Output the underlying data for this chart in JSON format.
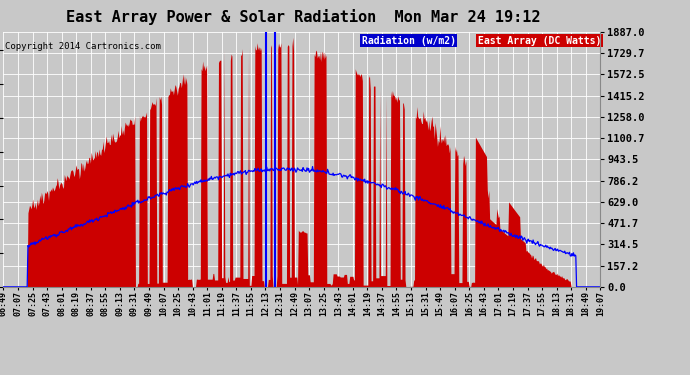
{
  "title": "East Array Power & Solar Radiation  Mon Mar 24 19:12",
  "copyright": "Copyright 2014 Cartronics.com",
  "legend_radiation": "Radiation (w/m2)",
  "legend_east": "East Array (DC Watts)",
  "y_max": 1887.0,
  "y_min": 0.0,
  "y_ticks": [
    0.0,
    157.2,
    314.5,
    471.7,
    629.0,
    786.2,
    943.5,
    1100.7,
    1258.0,
    1415.2,
    1572.5,
    1729.7,
    1887.0
  ],
  "bg_color": "#c8c8c8",
  "radiation_color": "#0000ff",
  "east_fill_color": "#cc0000",
  "grid_color": "#ffffff",
  "x_labels": [
    "06:49",
    "07:07",
    "07:25",
    "07:43",
    "08:01",
    "08:19",
    "08:37",
    "08:55",
    "09:13",
    "09:31",
    "09:49",
    "10:07",
    "10:25",
    "10:43",
    "11:01",
    "11:19",
    "11:37",
    "11:55",
    "12:13",
    "12:31",
    "12:49",
    "13:07",
    "13:25",
    "13:43",
    "14:01",
    "14:19",
    "14:37",
    "14:55",
    "15:13",
    "15:31",
    "15:49",
    "16:07",
    "16:25",
    "16:43",
    "17:01",
    "17:19",
    "17:37",
    "17:55",
    "18:13",
    "18:31",
    "18:49",
    "19:07"
  ],
  "n_points": 756,
  "radiation_scale": 1887.0,
  "radiation_max_wm2": 900.0
}
